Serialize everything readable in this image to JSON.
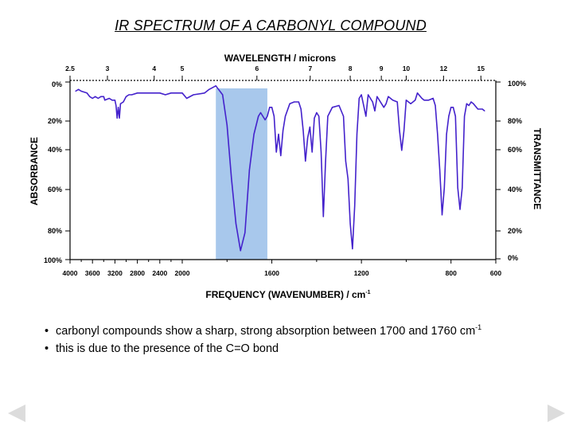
{
  "slide": {
    "title": "IR SPECTRUM OF A CARBONYL COMPOUND",
    "bullets": [
      {
        "text": "carbonyl compounds show a sharp, strong absorption between 1700 and 1760 cm",
        "sup": "-1"
      },
      {
        "text": "this is due to the presence of the C=O bond",
        "sup": ""
      }
    ],
    "bullet_char": "•",
    "nav": {
      "prev_icon": "arrow-left-icon",
      "next_icon": "arrow-right-icon"
    }
  },
  "chart_data": {
    "type": "line",
    "title": "",
    "top_axis": {
      "label": "WAVELENGTH / microns",
      "ticks": [
        {
          "label": "2.5",
          "value": 2.5
        },
        {
          "label": "3",
          "value": 3
        },
        {
          "label": "4",
          "value": 4
        },
        {
          "label": "5",
          "value": 5
        },
        {
          "label": "6",
          "value": 6
        },
        {
          "label": "7",
          "value": 7
        },
        {
          "label": "8",
          "value": 8
        },
        {
          "label": "9",
          "value": 9
        },
        {
          "label": "10",
          "value": 10
        },
        {
          "label": "12",
          "value": 12
        },
        {
          "label": "15",
          "value": 15
        }
      ]
    },
    "x_axis": {
      "label_main": "FREQUENCY (WAVENUMBER) / cm",
      "label_sup": "-1",
      "ticks": [
        4000,
        3600,
        3200,
        2800,
        2400,
        2000,
        1600,
        1200,
        800,
        600
      ]
    },
    "left_axis": {
      "label": "ABSORBANCE",
      "ticks": [
        "0%",
        "20%",
        "40%",
        "60%",
        "80%",
        "100%"
      ]
    },
    "right_axis": {
      "label": "TRANSMITTANCE",
      "ticks": [
        "100%",
        "80%",
        "60%",
        "40%",
        "20%",
        "0%"
      ]
    },
    "highlight_band": {
      "from": 1850,
      "to": 1620,
      "color": "#a8c8ec"
    },
    "line_color": "#4422cc",
    "series": [
      {
        "name": "spectrum",
        "units": "x = wavenumber cm-1, y = % transmittance",
        "points": [
          [
            3900,
            94
          ],
          [
            3850,
            95
          ],
          [
            3800,
            94
          ],
          [
            3700,
            93
          ],
          [
            3650,
            91
          ],
          [
            3600,
            90
          ],
          [
            3550,
            91
          ],
          [
            3500,
            90
          ],
          [
            3450,
            91
          ],
          [
            3400,
            91
          ],
          [
            3380,
            89
          ],
          [
            3300,
            90
          ],
          [
            3250,
            89
          ],
          [
            3200,
            89
          ],
          [
            3180,
            86
          ],
          [
            3160,
            79
          ],
          [
            3140,
            85
          ],
          [
            3120,
            79
          ],
          [
            3100,
            87
          ],
          [
            3050,
            88
          ],
          [
            3000,
            91
          ],
          [
            2950,
            92
          ],
          [
            2900,
            92
          ],
          [
            2800,
            93
          ],
          [
            2700,
            93
          ],
          [
            2600,
            93
          ],
          [
            2500,
            93
          ],
          [
            2400,
            93
          ],
          [
            2300,
            92
          ],
          [
            2200,
            93
          ],
          [
            2100,
            93
          ],
          [
            2000,
            93
          ],
          [
            1980,
            90
          ],
          [
            1950,
            92
          ],
          [
            1900,
            93
          ],
          [
            1880,
            95
          ],
          [
            1850,
            97
          ],
          [
            1820,
            92
          ],
          [
            1800,
            75
          ],
          [
            1780,
            45
          ],
          [
            1760,
            20
          ],
          [
            1740,
            5
          ],
          [
            1720,
            15
          ],
          [
            1700,
            50
          ],
          [
            1680,
            70
          ],
          [
            1660,
            80
          ],
          [
            1650,
            82
          ],
          [
            1640,
            80
          ],
          [
            1630,
            78
          ],
          [
            1620,
            80
          ],
          [
            1610,
            85
          ],
          [
            1600,
            85
          ],
          [
            1590,
            80
          ],
          [
            1580,
            60
          ],
          [
            1570,
            70
          ],
          [
            1560,
            58
          ],
          [
            1550,
            72
          ],
          [
            1540,
            80
          ],
          [
            1520,
            87
          ],
          [
            1500,
            88
          ],
          [
            1480,
            88
          ],
          [
            1470,
            84
          ],
          [
            1460,
            72
          ],
          [
            1450,
            55
          ],
          [
            1440,
            68
          ],
          [
            1430,
            74
          ],
          [
            1420,
            60
          ],
          [
            1410,
            79
          ],
          [
            1400,
            82
          ],
          [
            1390,
            80
          ],
          [
            1380,
            60
          ],
          [
            1370,
            24
          ],
          [
            1360,
            55
          ],
          [
            1350,
            80
          ],
          [
            1330,
            85
          ],
          [
            1300,
            86
          ],
          [
            1280,
            80
          ],
          [
            1270,
            55
          ],
          [
            1260,
            45
          ],
          [
            1250,
            20
          ],
          [
            1240,
            6
          ],
          [
            1230,
            30
          ],
          [
            1220,
            70
          ],
          [
            1210,
            90
          ],
          [
            1200,
            92
          ],
          [
            1180,
            80
          ],
          [
            1170,
            92
          ],
          [
            1150,
            88
          ],
          [
            1140,
            83
          ],
          [
            1130,
            91
          ],
          [
            1100,
            85
          ],
          [
            1090,
            87
          ],
          [
            1080,
            91
          ],
          [
            1060,
            89
          ],
          [
            1040,
            88
          ],
          [
            1030,
            72
          ],
          [
            1020,
            61
          ],
          [
            1010,
            72
          ],
          [
            1000,
            89
          ],
          [
            980,
            87
          ],
          [
            960,
            89
          ],
          [
            950,
            93
          ],
          [
            930,
            90
          ],
          [
            920,
            89
          ],
          [
            900,
            89
          ],
          [
            880,
            90
          ],
          [
            870,
            86
          ],
          [
            860,
            70
          ],
          [
            850,
            50
          ],
          [
            840,
            25
          ],
          [
            830,
            40
          ],
          [
            820,
            70
          ],
          [
            810,
            80
          ],
          [
            800,
            85
          ],
          [
            790,
            85
          ],
          [
            780,
            80
          ],
          [
            770,
            40
          ],
          [
            760,
            28
          ],
          [
            750,
            40
          ],
          [
            740,
            80
          ],
          [
            730,
            87
          ],
          [
            720,
            86
          ],
          [
            710,
            88
          ],
          [
            700,
            87
          ],
          [
            680,
            84
          ],
          [
            660,
            84
          ],
          [
            650,
            83
          ]
        ]
      }
    ]
  }
}
